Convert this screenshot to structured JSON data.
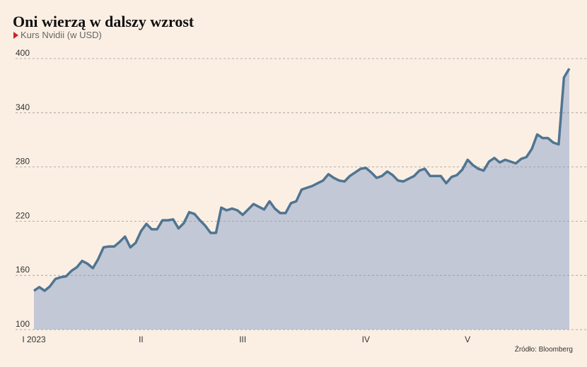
{
  "chart_data": {
    "type": "area",
    "title": "Oni wierzą w dalszy wzrost",
    "subtitle": "Kurs Nvidii (w USD)",
    "source": "Źródło: Bloomberg",
    "categories": [
      "I 2023",
      null,
      null,
      null,
      null,
      null,
      null,
      null,
      null,
      null,
      null,
      null,
      null,
      null,
      null,
      null,
      null,
      null,
      null,
      null,
      "II",
      null,
      null,
      null,
      null,
      null,
      null,
      null,
      null,
      null,
      null,
      null,
      null,
      null,
      null,
      null,
      null,
      null,
      null,
      "III",
      null,
      null,
      null,
      null,
      null,
      null,
      null,
      null,
      null,
      null,
      null,
      null,
      null,
      null,
      null,
      null,
      null,
      null,
      null,
      null,
      null,
      null,
      "IV",
      null,
      null,
      null,
      null,
      null,
      null,
      null,
      null,
      null,
      null,
      null,
      null,
      null,
      null,
      null,
      null,
      null,
      null,
      "V",
      null,
      null,
      null,
      null,
      null,
      null,
      null,
      null,
      null,
      null,
      null,
      null,
      null,
      null,
      null,
      null,
      null,
      null,
      null
    ],
    "series": [
      {
        "name": "Kurs Nvidii (w USD)",
        "color": "#4f7592",
        "fill": "#c3c8d6",
        "values": [
          143,
          147,
          143,
          148,
          156,
          158,
          159,
          165,
          169,
          176,
          173,
          168,
          178,
          191,
          192,
          192,
          197,
          203,
          191,
          196,
          209,
          217,
          211,
          211,
          221,
          221,
          222,
          212,
          218,
          230,
          228,
          221,
          215,
          207,
          207,
          235,
          232,
          234,
          232,
          227,
          233,
          239,
          236,
          233,
          242,
          234,
          229,
          229,
          240,
          242,
          255,
          257,
          259,
          262,
          265,
          272,
          268,
          265,
          264,
          270,
          274,
          278,
          279,
          274,
          268,
          270,
          275,
          271,
          265,
          264,
          267,
          270,
          276,
          278,
          270,
          270,
          270,
          262,
          269,
          271,
          277,
          288,
          282,
          278,
          276,
          286,
          290,
          285,
          288,
          286,
          284,
          289,
          291,
          300,
          316,
          312,
          312,
          307,
          305,
          379,
          389
        ]
      }
    ],
    "ylim": [
      100,
      400
    ],
    "yticks": [
      100,
      160,
      220,
      280,
      340,
      400
    ],
    "grid": true
  }
}
